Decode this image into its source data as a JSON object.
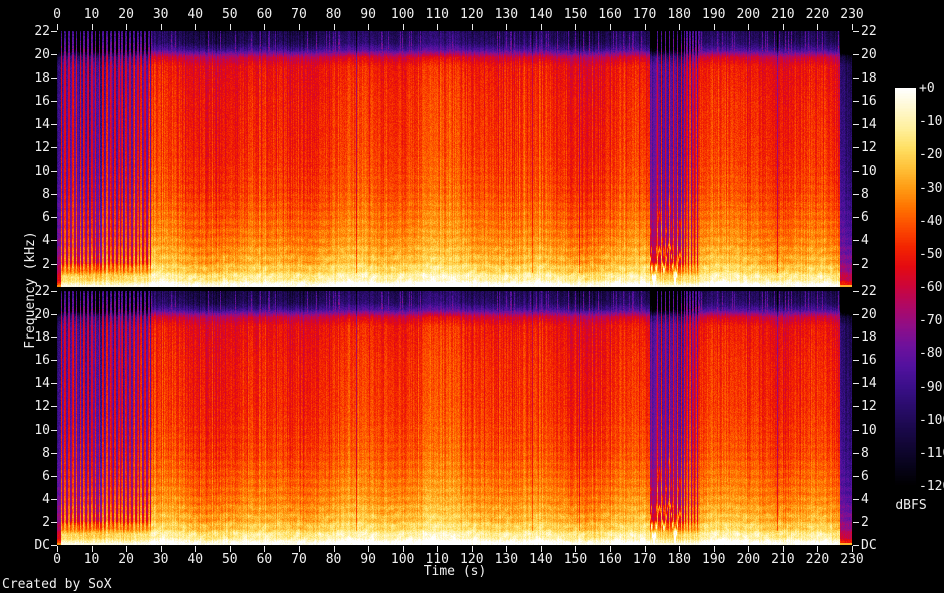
{
  "credit": "Created by SoX",
  "axes": {
    "time": {
      "label": "Time (s)",
      "ticks": [
        "0",
        "10",
        "20",
        "30",
        "40",
        "50",
        "60",
        "70",
        "80",
        "90",
        "100",
        "110",
        "120",
        "130",
        "140",
        "150",
        "160",
        "170",
        "180",
        "190",
        "200",
        "210",
        "220",
        "230"
      ]
    },
    "frequency": {
      "label": "Frequency (kHz)",
      "ticks": [
        "22",
        "20",
        "18",
        "16",
        "14",
        "12",
        "10",
        "8",
        "6",
        "4",
        "2"
      ],
      "dc": "DC"
    },
    "level": {
      "label": "dBFS",
      "ticks": [
        "+0",
        "-10",
        "-20",
        "-30",
        "-40",
        "-50",
        "-60",
        "-70",
        "-80",
        "-90",
        "-100",
        "-110",
        "-120"
      ]
    }
  },
  "chart_data": {
    "type": "heatmap",
    "subtype": "audio-spectrogram-stereo",
    "title": "",
    "xlabel": "Time (s)",
    "ylabel": "Frequency (kHz)",
    "zlabel": "dBFS",
    "channels": [
      "left (top panel)",
      "right (bottom panel)"
    ],
    "x": {
      "min": 0,
      "max": 230,
      "tick_step": 10
    },
    "y": {
      "min": 0,
      "max": 22,
      "tick_step": 2,
      "min_label": "DC"
    },
    "z": {
      "min": -120,
      "max": 0,
      "tick_step": 10,
      "legend_position": "right-colorbar"
    },
    "grid": false,
    "footer": "Created by SoX",
    "colormap": [
      {
        "db": 0,
        "color": "#ffffff"
      },
      {
        "db": -6,
        "color": "#fff8cf"
      },
      {
        "db": -12,
        "color": "#fff09e"
      },
      {
        "db": -18,
        "color": "#ffdf63"
      },
      {
        "db": -24,
        "color": "#ffc139"
      },
      {
        "db": -30,
        "color": "#ff9c14"
      },
      {
        "db": -36,
        "color": "#ff7300"
      },
      {
        "db": -42,
        "color": "#fc4a00"
      },
      {
        "db": -48,
        "color": "#f32400"
      },
      {
        "db": -54,
        "color": "#e30a12"
      },
      {
        "db": -60,
        "color": "#cb053c"
      },
      {
        "db": -66,
        "color": "#ae0866"
      },
      {
        "db": -72,
        "color": "#8e0e88"
      },
      {
        "db": -78,
        "color": "#6d119c"
      },
      {
        "db": -84,
        "color": "#52119e"
      },
      {
        "db": -90,
        "color": "#3b0f8a"
      },
      {
        "db": -96,
        "color": "#2a0c6c"
      },
      {
        "db": -102,
        "color": "#1c094f"
      },
      {
        "db": -108,
        "color": "#110634"
      },
      {
        "db": -114,
        "color": "#07031b"
      },
      {
        "db": -120,
        "color": "#000000"
      }
    ],
    "freq_profile_db": [
      [
        0,
        -2
      ],
      [
        0.4,
        -8
      ],
      [
        1,
        -18
      ],
      [
        2,
        -27
      ],
      [
        4,
        -35
      ],
      [
        8,
        -44
      ],
      [
        12,
        -48
      ],
      [
        16,
        -50
      ],
      [
        19,
        -53
      ],
      [
        19.8,
        -62
      ],
      [
        20.4,
        -88
      ],
      [
        21,
        -100
      ],
      [
        22,
        -104
      ]
    ],
    "segments": [
      {
        "t0": 0,
        "t1": 0.9,
        "type": "quiet",
        "gain": -44
      },
      {
        "t0": 0.9,
        "t1": 13,
        "type": "rhythmic",
        "gain": -8,
        "period": 1.1,
        "duty": 0.42,
        "depth": 30
      },
      {
        "t0": 13,
        "t1": 27,
        "type": "rhythmic",
        "gain": -4,
        "period": 1.1,
        "duty": 0.55,
        "depth": 28
      },
      {
        "t0": 27,
        "t1": 60,
        "type": "full",
        "gain": 0,
        "transient_p": 0.12
      },
      {
        "t0": 60,
        "t1": 97,
        "type": "full",
        "gain": 2,
        "transient_p": 0.12
      },
      {
        "t0": 97,
        "t1": 147,
        "type": "full",
        "gain": 3,
        "transient_p": 0.1
      },
      {
        "t0": 147,
        "t1": 171.5,
        "type": "full",
        "gain": 1,
        "transient_p": 0.12
      },
      {
        "t0": 171.5,
        "t1": 180.5,
        "type": "rhythmic",
        "gain": -4,
        "period": 1.15,
        "duty": 0.18,
        "depth": 26,
        "melody": true
      },
      {
        "t0": 180.5,
        "t1": 186,
        "type": "rhythmic",
        "gain": -2,
        "period": 0.85,
        "duty": 0.55,
        "depth": 26
      },
      {
        "t0": 186,
        "t1": 226.8,
        "type": "full",
        "gain": 0,
        "transient_p": 0.12
      },
      {
        "t0": 226.8,
        "t1": 230,
        "type": "fade",
        "gain": -44
      }
    ],
    "texture": {
      "column_jitter_db": 3,
      "channel_jitter_db": 1.5,
      "pixel_noise_db": 3.5,
      "banding_db": 3,
      "hf_stripe_db": 4,
      "gap_column_p": 0.009,
      "gap_column_db": 15,
      "transient_min_f": 18.5,
      "dc_line_db": -5
    }
  }
}
